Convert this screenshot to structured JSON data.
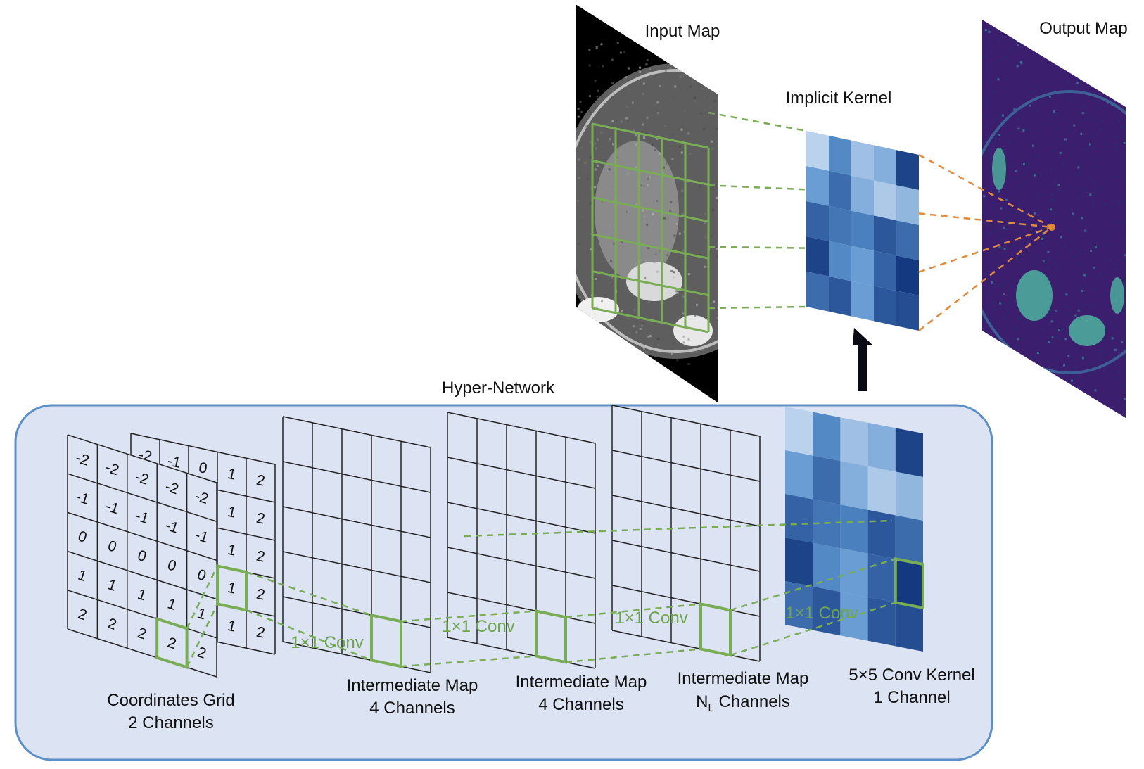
{
  "labels": {
    "input_map": "Input Map",
    "implicit_kernel": "Implicit Kernel",
    "output_map": "Output Map",
    "hyper_network": "Hyper-Network"
  },
  "conv_labels": [
    "1×1 Conv",
    "1×1 Conv",
    "1×1 Conv",
    "1×1 Conv"
  ],
  "maps": [
    {
      "line1": "Coordinates Grid",
      "line2": "2 Channels"
    },
    {
      "line1": "Intermediate Map",
      "line2": "4 Channels"
    },
    {
      "line1": "Intermediate Map",
      "line2": "4 Channels"
    },
    {
      "line1": "Intermediate Map",
      "line2_main": "N",
      "line2_sub": "L",
      "line2_rest": " Channels"
    },
    {
      "line1": "5×5 Conv Kernel",
      "line2": "1 Channel"
    }
  ],
  "coord_grid_x": [
    [
      "-2",
      "-1",
      "0",
      "1",
      "2"
    ],
    [
      "-2",
      "-1",
      "0",
      "1",
      "2"
    ],
    [
      "-2",
      "-1",
      "0",
      "1",
      "2"
    ],
    [
      "-2",
      "-1",
      "0",
      "1",
      "2"
    ],
    [
      "-2",
      "-1",
      "0",
      "1",
      "2"
    ]
  ],
  "coord_grid_y": [
    [
      "-2",
      "-2",
      "-2",
      "-2",
      "-2"
    ],
    [
      "-1",
      "-1",
      "-1",
      "-1",
      "-1"
    ],
    [
      "0",
      "0",
      "0",
      "0",
      "0"
    ],
    [
      "1",
      "1",
      "1",
      "1",
      "1"
    ],
    [
      "2",
      "2",
      "2",
      "2",
      "2"
    ]
  ],
  "kernel_matrix": [
    [
      0.15,
      0.55,
      0.25,
      0.35,
      0.9
    ],
    [
      0.45,
      0.7,
      0.35,
      0.2,
      0.3
    ],
    [
      0.75,
      0.65,
      0.6,
      0.8,
      0.7
    ],
    [
      0.9,
      0.55,
      0.45,
      0.75,
      0.95
    ],
    [
      0.7,
      0.8,
      0.45,
      0.8,
      0.85
    ]
  ],
  "colors": {
    "panel_fill": "#dce3f2",
    "panel_border": "#5b8fca",
    "green": "#78ad55",
    "orange": "#e08a3c",
    "kernel_light": "#e3ecf8",
    "kernel_dark": "#0d2f78",
    "output_bg": "#3b1f6e",
    "output_feature": "#4fb3a0"
  }
}
